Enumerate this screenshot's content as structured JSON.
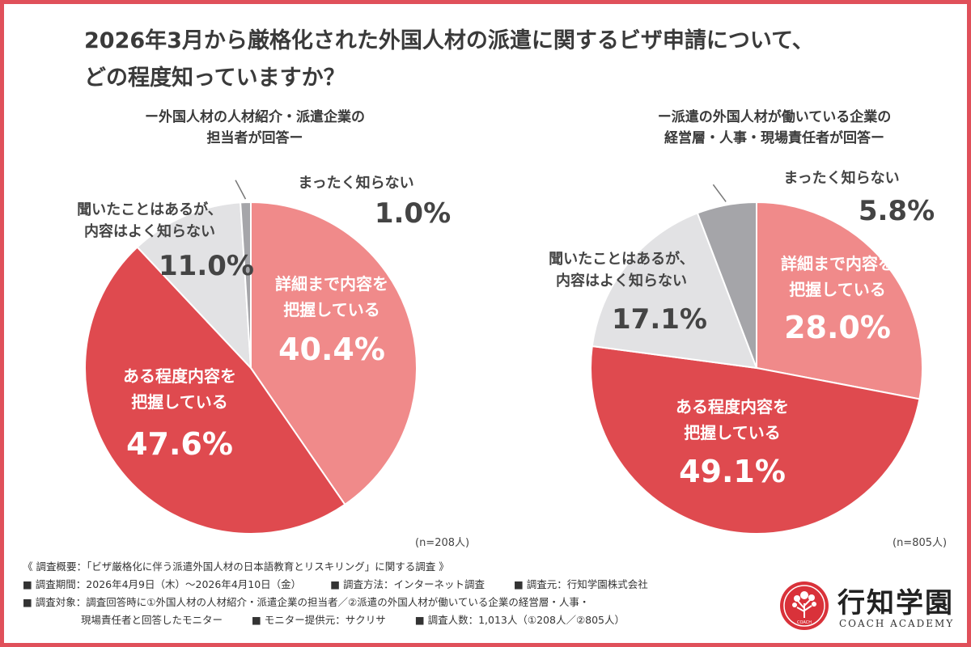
{
  "title": {
    "line1": "2026年3月から厳格化された外国人材の派遣に関するビザ申請について、",
    "line2": "どの程度知っていますか？"
  },
  "colors": {
    "border": "#e0505a",
    "detail": "#f08a8a",
    "some": "#df4a4f",
    "heard": "#e2e2e4",
    "none": "#a5a5a9"
  },
  "chart_data": [
    {
      "type": "pie",
      "title": "ー外国人材の人材紹介・派遣企業の 担当者が回答ー",
      "title_lines": [
        "ー外国人材の人材紹介・派遣企業の",
        "担当者が回答ー"
      ],
      "n": "(n=208人)",
      "slices": [
        {
          "key": "detail",
          "label_lines": [
            "詳細まで内容を",
            "把握している"
          ],
          "value": 40.4,
          "value_text": "40.4%",
          "color": "#f08a8a"
        },
        {
          "key": "some",
          "label_lines": [
            "ある程度内容を",
            "把握している"
          ],
          "value": 47.6,
          "value_text": "47.6%",
          "color": "#df4a4f"
        },
        {
          "key": "heard",
          "label_lines": [
            "聞いたことはあるが、",
            "内容はよく知らない"
          ],
          "value": 11.0,
          "value_text": "11.0%",
          "color": "#e2e2e4"
        },
        {
          "key": "none",
          "label_lines": [
            "まったく知らない"
          ],
          "value": 1.0,
          "value_text": "1.0%",
          "color": "#a5a5a9"
        }
      ]
    },
    {
      "type": "pie",
      "title": "ー派遣の外国人材が働いている企業の 経営層・人事・現場責任者が回答ー",
      "title_lines": [
        "ー派遣の外国人材が働いている企業の",
        "経営層・人事・現場責任者が回答ー"
      ],
      "n": "(n=805人)",
      "slices": [
        {
          "key": "detail",
          "label_lines": [
            "詳細まで内容を",
            "把握している"
          ],
          "value": 28.0,
          "value_text": "28.0%",
          "color": "#f08a8a"
        },
        {
          "key": "some",
          "label_lines": [
            "ある程度内容を",
            "把握している"
          ],
          "value": 49.1,
          "value_text": "49.1%",
          "color": "#df4a4f"
        },
        {
          "key": "heard",
          "label_lines": [
            "聞いたことはあるが、",
            "内容はよく知らない"
          ],
          "value": 17.1,
          "value_text": "17.1%",
          "color": "#e2e2e4"
        },
        {
          "key": "none",
          "label_lines": [
            "まったく知らない"
          ],
          "value": 5.8,
          "value_text": "5.8%",
          "color": "#a5a5a9"
        }
      ]
    }
  ],
  "footer": {
    "overview": "《 調査概要：「ビザ厳格化に伴う派遣外国人材の日本語教育とリスキリング」に関する調査 》",
    "period": "■ 調査期間：2026年4月9日（木）〜2026年4月10日（金）",
    "method": "■ 調査方法：インターネット調査",
    "source": "■ 調査元：行知学園株式会社",
    "target_line1": "■ 調査対象：調査回答時に①外国人材の人材紹介・派遣企業の担当者／②派遣の外国人材が働いている企業の経営層・人事・",
    "target_line2": "現場責任者と回答したモニター",
    "provider": "■ モニター提供元：サクリサ",
    "count": "■ 調査人数：1,013人（①208人／②805人）"
  },
  "brand": {
    "name": "行知学園",
    "sub": "COACH ACADEMY",
    "emblem_text": "COACH",
    "emblem_icon": "tree-icon"
  }
}
